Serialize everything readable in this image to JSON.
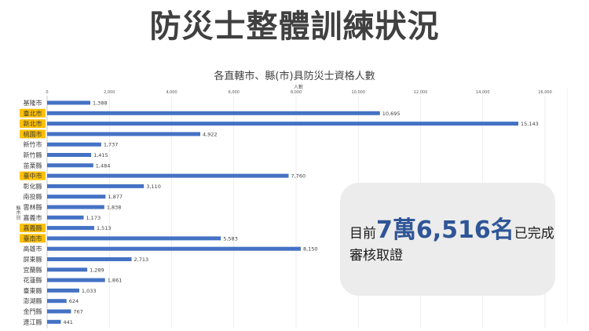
{
  "slide": {
    "title": "防災士整體訓練狀況"
  },
  "chart_data": {
    "type": "bar",
    "orientation": "horizontal",
    "title": "各直轄市、縣(市)具防災士資格人數",
    "xlabel": "人數",
    "ylabel": "縣市別",
    "xlim": [
      0,
      16000
    ],
    "xticks": [
      "0",
      "2,000",
      "4,000",
      "6,000",
      "8,000",
      "10,000",
      "12,000",
      "14,000",
      "16,000"
    ],
    "categories": [
      "基隆市",
      "臺北市",
      "新北市",
      "桃園市",
      "新竹市",
      "新竹縣",
      "苗栗縣",
      "臺中市",
      "彰化縣",
      "南投縣",
      "雲林縣",
      "嘉義市",
      "嘉義縣",
      "臺南市",
      "高雄市",
      "屏東縣",
      "宜蘭縣",
      "花蓮縣",
      "臺東縣",
      "澎湖縣",
      "金門縣",
      "連江縣"
    ],
    "values": [
      1388,
      10695,
      15143,
      4922,
      1737,
      1415,
      1484,
      7760,
      3110,
      1877,
      1838,
      1173,
      1513,
      5583,
      8150,
      2713,
      1289,
      1861,
      1033,
      624,
      767,
      441
    ],
    "value_labels": [
      "1,388",
      "10,695",
      "15,143",
      "4,922",
      "1,737",
      "1,415",
      "1,484",
      "7,760",
      "3,110",
      "1,877",
      "1,838",
      "1,173",
      "1,513",
      "5,583",
      "8,150",
      "2,713",
      "1,289",
      "1,861",
      "1,033",
      "624",
      "767",
      "441"
    ],
    "highlighted_categories": [
      "臺北市",
      "新北市",
      "桃園市",
      "臺中市",
      "嘉義縣",
      "臺南市"
    ],
    "colors": {
      "bar": "#4472c4",
      "highlight": "#ffc000",
      "text": "#404040",
      "grid": "#e3e3e3"
    },
    "grid": true,
    "legend": "none"
  },
  "callout": {
    "prefix": "目前",
    "number": "7萬6,516名",
    "suffix": "已完成",
    "line2": "審核取證"
  }
}
